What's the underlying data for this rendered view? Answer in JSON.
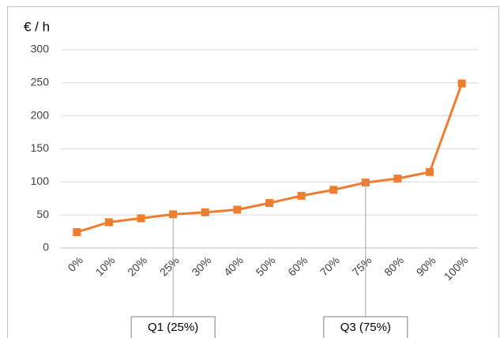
{
  "chart_data": {
    "type": "line",
    "y_label": "€ / h",
    "categories": [
      "0%",
      "10%",
      "20%",
      "25%",
      "30%",
      "40%",
      "50%",
      "60%",
      "70%",
      "75%",
      "80%",
      "90%",
      "100%"
    ],
    "series": [
      {
        "name": "€ / h",
        "color": "#ed7d31",
        "values": [
          24,
          39,
          45,
          51,
          54,
          58,
          68,
          79,
          88,
          99,
          105,
          115,
          249
        ]
      }
    ],
    "ylim": [
      0,
      300
    ],
    "yticks": [
      0,
      50,
      100,
      150,
      200,
      250,
      300
    ],
    "grid": true,
    "annotations": [
      {
        "text": "Q1 (25%)",
        "category": "25%"
      },
      {
        "text": "Q3 (75%)",
        "category": "75%"
      }
    ]
  }
}
